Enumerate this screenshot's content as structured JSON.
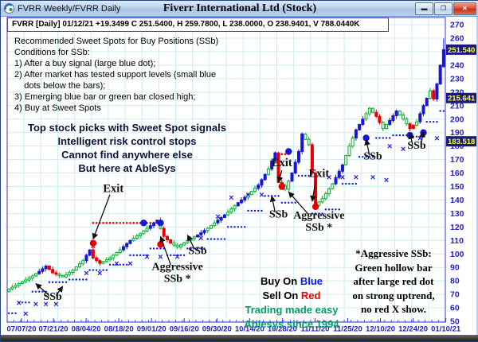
{
  "window": {
    "title": "FVRR Weekly/FVRR Daily",
    "app_title": "Fiverr International Ltd (Stock)",
    "buttons": {
      "minimize": "▬",
      "maximize": "❐",
      "close": "✕"
    }
  },
  "quote_bar": {
    "text": "FVRR [Daily] 01/12/21  +19.3499 C 251.5400, H 259.7800, L 238.0000, O 238.9401, V 788.0440K"
  },
  "annotations": {
    "conditions": "Recommended Sweet Spots for Buy Positions (SSb)\nConditions for SSb:\n1) After a buy signal (large blue dot);\n2) After market has tested support levels (small blue\n    dots below the bars);\n3) Emerging blue bar or green bar closed high;\n4) Buy at Sweet Spots",
    "promo": [
      "Top stock picks with Sweet Spot signals",
      "Intelligent risk control stops",
      "Cannot find anywhere else",
      "But here at AbleSys"
    ],
    "buy_sell": {
      "buy_prefix": "Buy On ",
      "buy_word": "Blue",
      "sell_prefix": "Sell On ",
      "sell_word": "Red",
      "line3": "Trading made easy",
      "line4": "Ablesys since 1994"
    },
    "aggressive_note": "*Aggressive SSb:\nGreen hollow bar\nafter large red dot\non strong uptrend,\nno red X show."
  },
  "colors": {
    "bar_hollow_green": "#00b02c",
    "bar_blue": "#1616d8",
    "bar_red": "#e80000",
    "axis_text": "#2222cc",
    "grid": "#cdedf0",
    "plot_border": "#3a3acc",
    "tag_bg": "#181a7e",
    "tag_text": "#ffff33",
    "promo_text": "#0b1238",
    "green_text": "#00a05f",
    "blue_word": "#1414ff",
    "red_word": "#ee0000",
    "x_blue": "#2020e0",
    "x_red": "#e80000",
    "arrow": "#111111",
    "label_text": "#111111"
  },
  "chart_data": {
    "type": "candlestick",
    "symbol": "FVRR",
    "timeframe": "Daily",
    "title": "Fiverr International Ltd (Stock)",
    "bars_count": 130,
    "x_labels": [
      "07/07/20",
      "07/21/20",
      "08/04/20",
      "08/18/20",
      "09/01/20",
      "09/16/20",
      "09/30/20",
      "10/14/20",
      "10/28/20",
      "11/11/20",
      "11/25/20",
      "12/10/20",
      "12/24/20",
      "01/10/21"
    ],
    "y_ticks": [
      270,
      260,
      250,
      240,
      230,
      220,
      210,
      200,
      190,
      180,
      170,
      160,
      150,
      140,
      130,
      120,
      110,
      100,
      90,
      80,
      70,
      60,
      50
    ],
    "y_range": [
      50,
      270
    ],
    "price_tags": [
      {
        "value": "251.540",
        "price": 251.54
      },
      {
        "value": "215.641",
        "price": 215.641
      },
      {
        "value": "183.518",
        "price": 183.518
      }
    ],
    "close_keyframes": [
      [
        0,
        74
      ],
      [
        3,
        78
      ],
      [
        6,
        82
      ],
      [
        9,
        87
      ],
      [
        11,
        91
      ],
      [
        13,
        86
      ],
      [
        16,
        83
      ],
      [
        19,
        88
      ],
      [
        22,
        95
      ],
      [
        24,
        103
      ],
      [
        25,
        97
      ],
      [
        27,
        93
      ],
      [
        30,
        97
      ],
      [
        33,
        103
      ],
      [
        36,
        110
      ],
      [
        39,
        115
      ],
      [
        42,
        121
      ],
      [
        44,
        125
      ],
      [
        46,
        113
      ],
      [
        48,
        108
      ],
      [
        50,
        105
      ],
      [
        53,
        110
      ],
      [
        56,
        114
      ],
      [
        59,
        119
      ],
      [
        62,
        125
      ],
      [
        65,
        131
      ],
      [
        68,
        138
      ],
      [
        71,
        144
      ],
      [
        74,
        151
      ],
      [
        77,
        163
      ],
      [
        79,
        175
      ],
      [
        80,
        153
      ],
      [
        82,
        148
      ],
      [
        84,
        160
      ],
      [
        86,
        176
      ],
      [
        87,
        189
      ],
      [
        89,
        181
      ],
      [
        90,
        160
      ],
      [
        91,
        136
      ],
      [
        93,
        141
      ],
      [
        96,
        152
      ],
      [
        99,
        166
      ],
      [
        101,
        180
      ],
      [
        103,
        192
      ],
      [
        105,
        200
      ],
      [
        107,
        208
      ],
      [
        109,
        202
      ],
      [
        111,
        193
      ],
      [
        113,
        199
      ],
      [
        115,
        206
      ],
      [
        117,
        200
      ],
      [
        119,
        193
      ],
      [
        121,
        198
      ],
      [
        123,
        210
      ],
      [
        125,
        221
      ],
      [
        126,
        215
      ],
      [
        127,
        226
      ],
      [
        128,
        240
      ],
      [
        129,
        251.54
      ]
    ],
    "color_segments": [
      [
        9,
        11,
        "b"
      ],
      [
        12,
        14,
        "r"
      ],
      [
        23,
        24,
        "b"
      ],
      [
        25,
        27,
        "r"
      ],
      [
        34,
        36,
        "b"
      ],
      [
        42,
        44,
        "b"
      ],
      [
        46,
        48,
        "r"
      ],
      [
        56,
        58,
        "b"
      ],
      [
        62,
        64,
        "b"
      ],
      [
        68,
        70,
        "b"
      ],
      [
        74,
        76,
        "b"
      ],
      [
        78,
        79,
        "b"
      ],
      [
        80,
        81,
        "r"
      ],
      [
        84,
        87,
        "b"
      ],
      [
        90,
        91,
        "r"
      ],
      [
        97,
        99,
        "b"
      ],
      [
        103,
        105,
        "b"
      ],
      [
        109,
        110,
        "r"
      ],
      [
        113,
        115,
        "b"
      ],
      [
        119,
        120,
        "r"
      ],
      [
        122,
        124,
        "b"
      ],
      [
        126,
        126,
        "r"
      ],
      [
        127,
        129,
        "b"
      ]
    ],
    "last_bar": {
      "open": 238.9401,
      "high": 259.78,
      "low": 238.0,
      "close": 251.54
    },
    "support_dot_runs": [
      [
        0,
        2,
        56
      ],
      [
        3,
        6,
        64
      ],
      [
        7,
        11,
        72
      ],
      [
        12,
        17,
        79
      ],
      [
        18,
        23,
        81
      ],
      [
        24,
        29,
        88
      ],
      [
        30,
        35,
        92
      ],
      [
        36,
        41,
        99
      ],
      [
        42,
        46,
        104
      ],
      [
        47,
        52,
        99
      ],
      [
        53,
        58,
        104
      ],
      [
        59,
        64,
        111
      ],
      [
        65,
        70,
        120
      ],
      [
        71,
        75,
        132
      ],
      [
        76,
        80,
        143
      ],
      [
        81,
        85,
        138
      ],
      [
        86,
        89,
        158
      ],
      [
        90,
        93,
        130
      ],
      [
        94,
        98,
        133
      ],
      [
        99,
        103,
        152
      ],
      [
        104,
        108,
        172
      ],
      [
        109,
        113,
        186
      ],
      [
        114,
        118,
        188
      ],
      [
        119,
        123,
        187
      ],
      [
        124,
        127,
        198
      ],
      [
        128,
        129,
        206
      ]
    ],
    "resistance_dot_runs": [
      [
        25,
        45,
        123
      ],
      [
        79,
        83,
        174
      ]
    ],
    "buy_signal_dots": [
      [
        40,
        123
      ],
      [
        45,
        123
      ],
      [
        83,
        176
      ],
      [
        106,
        186
      ],
      [
        119,
        188
      ],
      [
        123,
        190
      ]
    ],
    "sell_signal_dots": [
      [
        25,
        108
      ],
      [
        45,
        107
      ],
      [
        81,
        150
      ],
      [
        91,
        135
      ]
    ],
    "blue_x_marks": [
      [
        3,
        64
      ],
      [
        5,
        56
      ],
      [
        8,
        63
      ],
      [
        11,
        63
      ],
      [
        14,
        63
      ],
      [
        23,
        86
      ],
      [
        27,
        86
      ],
      [
        32,
        93
      ],
      [
        36,
        93
      ],
      [
        41,
        98
      ],
      [
        45,
        98
      ],
      [
        50,
        98
      ],
      [
        57,
        112
      ],
      [
        62,
        128
      ],
      [
        66,
        142
      ],
      [
        71,
        144
      ],
      [
        75,
        144
      ],
      [
        95,
        157
      ],
      [
        99,
        157
      ],
      [
        103,
        157
      ],
      [
        108,
        157
      ],
      [
        112,
        155
      ],
      [
        113,
        180
      ],
      [
        117,
        178
      ],
      [
        122,
        186
      ],
      [
        127,
        186
      ]
    ],
    "red_x_marks": [
      [
        25,
        106
      ],
      [
        81,
        149
      ]
    ],
    "labels": {
      "exit_text": "Exit",
      "ssb_text": "SSb",
      "aggressive_lines": [
        "Aggressive",
        "SSb *"
      ],
      "exit": [
        {
          "d": 31,
          "p": 146
        },
        {
          "d": 81,
          "p": 165
        },
        {
          "d": 92,
          "p": 157
        }
      ],
      "ssb": [
        {
          "d": 13,
          "p": 66
        },
        {
          "d": 56,
          "p": 100
        },
        {
          "d": 80,
          "p": 127
        },
        {
          "d": 108,
          "p": 170
        },
        {
          "d": 121,
          "p": 178
        }
      ],
      "aggressive": [
        {
          "d": 50,
          "p": 88
        },
        {
          "d": 92,
          "p": 126
        }
      ]
    },
    "arrows": [
      {
        "from": [
          12,
          69
        ],
        "to": [
          8,
          78
        ]
      },
      {
        "from": [
          14,
          69
        ],
        "to": [
          16,
          76
        ]
      },
      {
        "from": [
          30,
          144
        ],
        "to": [
          25,
          111
        ]
      },
      {
        "from": [
          48,
          92
        ],
        "to": [
          45,
          113
        ]
      },
      {
        "from": [
          55,
          104
        ],
        "to": [
          53,
          114
        ]
      },
      {
        "from": [
          79,
          131
        ],
        "to": [
          78,
          143
        ]
      },
      {
        "from": [
          81,
          162
        ],
        "to": [
          80,
          153
        ]
      },
      {
        "from": [
          89,
          129
        ],
        "to": [
          83,
          146
        ]
      },
      {
        "from": [
          91,
          154
        ],
        "to": [
          90,
          139
        ]
      },
      {
        "from": [
          107,
          173
        ],
        "to": [
          106,
          185
        ]
      },
      {
        "from": [
          119.8,
          181
        ],
        "to": [
          119,
          189.5
        ]
      },
      {
        "from": [
          122.3,
          181
        ],
        "to": [
          123,
          191
        ]
      }
    ]
  }
}
